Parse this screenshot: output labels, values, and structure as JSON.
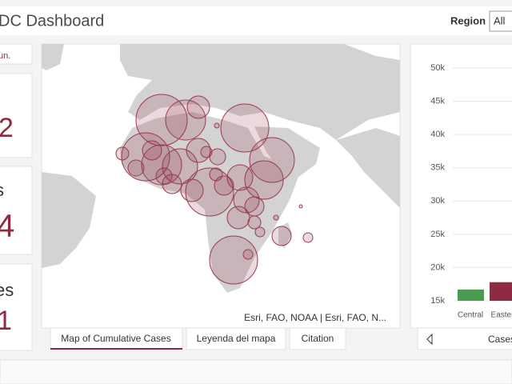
{
  "header": {
    "title": "DC Dashboard",
    "region_label": "Region",
    "region_value": "All"
  },
  "cards": [
    {
      "value": "un."
    },
    {
      "value": "2"
    },
    {
      "label": "s",
      "value": "4"
    },
    {
      "label": "es",
      "value": "1"
    }
  ],
  "map": {
    "attribution": "Esri, FAO, NOAA | Esri, FAO, N..."
  },
  "tabs": [
    "Map of Cumulative Cases",
    "Leyenda del mapa",
    "Citation"
  ],
  "chart": {
    "type": "bar",
    "categories": [
      "Central",
      "Easter"
    ],
    "values": [
      16700,
      17800
    ],
    "colors": [
      "#4c9a52",
      "#8e2b42"
    ],
    "ylim": [
      15000,
      50000
    ],
    "yticks": [
      {
        "value": 15000,
        "label": "15k"
      },
      {
        "value": 20000,
        "label": "20k"
      },
      {
        "value": 25000,
        "label": "25k"
      },
      {
        "value": 30000,
        "label": "30k"
      },
      {
        "value": 35000,
        "label": "35k"
      },
      {
        "value": 40000,
        "label": "40k"
      },
      {
        "value": 45000,
        "label": "45k"
      },
      {
        "value": 50000,
        "label": "50k"
      }
    ],
    "grid": true
  },
  "chart_tabs": [
    "Cases"
  ]
}
